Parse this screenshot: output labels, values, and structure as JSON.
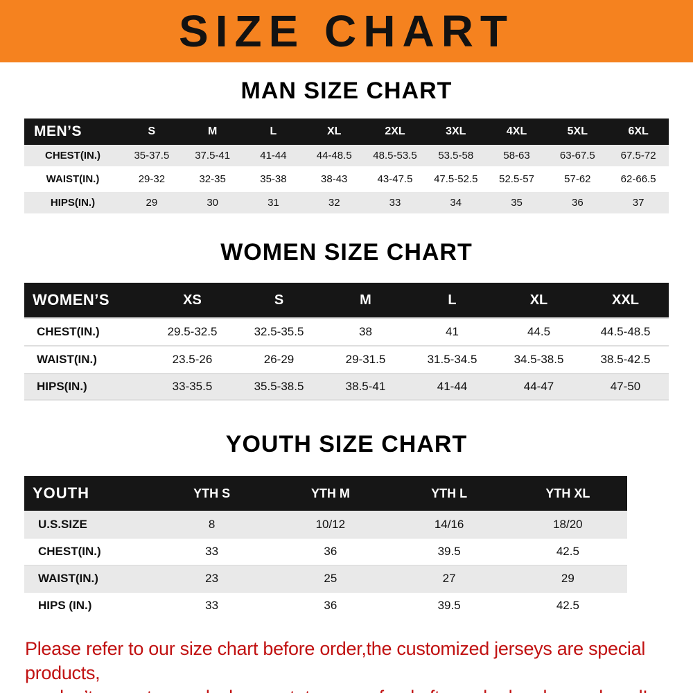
{
  "banner": {
    "title": "SIZE CHART",
    "bg_color": "#F5821F",
    "text_color": "#121212"
  },
  "sections": [
    {
      "heading": "MAN SIZE CHART",
      "table": {
        "label": "MEN’S",
        "columns": [
          "S",
          "M",
          "L",
          "XL",
          "2XL",
          "3XL",
          "4XL",
          "5XL",
          "6XL"
        ],
        "rows": [
          {
            "label": "CHEST(IN.)",
            "values": [
              "35-37.5",
              "37.5-41",
              "41-44",
              "44-48.5",
              "48.5-53.5",
              "53.5-58",
              "58-63",
              "63-67.5",
              "67.5-72"
            ]
          },
          {
            "label": "WAIST(IN.)",
            "values": [
              "29-32",
              "32-35",
              "35-38",
              "38-43",
              "43-47.5",
              "47.5-52.5",
              "52.5-57",
              "57-62",
              "62-66.5"
            ]
          },
          {
            "label": "HIPS(IN.)",
            "values": [
              "29",
              "30",
              "31",
              "32",
              "33",
              "34",
              "35",
              "36",
              "37"
            ]
          }
        ]
      }
    },
    {
      "heading": "WOMEN SIZE CHART",
      "table": {
        "label": "WOMEN’S",
        "columns": [
          "XS",
          "S",
          "M",
          "L",
          "XL",
          "XXL"
        ],
        "rows": [
          {
            "label": "CHEST(IN.)",
            "values": [
              "29.5-32.5",
              "32.5-35.5",
              "38",
              "41",
              "44.5",
              "44.5-48.5"
            ]
          },
          {
            "label": "WAIST(IN.)",
            "values": [
              "23.5-26",
              "26-29",
              "29-31.5",
              "31.5-34.5",
              "34.5-38.5",
              "38.5-42.5"
            ]
          },
          {
            "label": "HIPS(IN.)",
            "values": [
              "33-35.5",
              "35.5-38.5",
              "38.5-41",
              "41-44",
              "44-47",
              "47-50"
            ]
          }
        ]
      }
    },
    {
      "heading": "YOUTH SIZE CHART",
      "table": {
        "label": "YOUTH",
        "columns": [
          "YTH S",
          "YTH M",
          "YTH L",
          "YTH XL"
        ],
        "rows": [
          {
            "label": "U.S.SIZE",
            "values": [
              "8",
              "10/12",
              "14/16",
              "18/20"
            ]
          },
          {
            "label": "CHEST(IN.)",
            "values": [
              "33",
              "36",
              "39.5",
              "42.5"
            ]
          },
          {
            "label": "WAIST(IN.)",
            "values": [
              "23",
              "25",
              "27",
              "29"
            ]
          },
          {
            "label": "HIPS (IN.)",
            "values": [
              "33",
              "36",
              "39.5",
              "42.5"
            ]
          }
        ]
      }
    }
  ],
  "footer": {
    "lines": [
      "Please refer to our size chart before order,the customized jerseys are special products,",
      "we don’t accept cancel, change, teturn or refund after order has been placed!"
    ],
    "text_color": "#c11212"
  }
}
